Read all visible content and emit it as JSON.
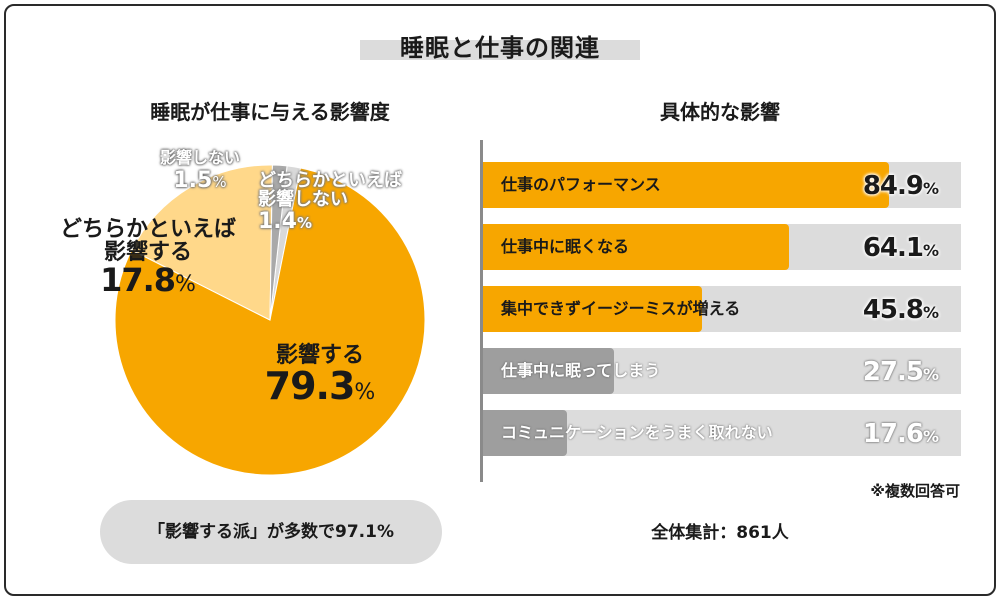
{
  "title": "睡眠と仕事の関連",
  "chart_data": [
    {
      "type": "pie",
      "title": "睡眠が仕事に与える影響度",
      "slices": [
        {
          "label": "影響する",
          "value": 79.3,
          "color": "#f7a600"
        },
        {
          "label": "どちらかといえば影響する",
          "value": 17.8,
          "color": "#ffd88a"
        },
        {
          "label": "影響しない",
          "value": 1.5,
          "color": "#a9a9a9"
        },
        {
          "label": "どちらかといえば影響しない",
          "value": 1.4,
          "color": "#d9d9d9"
        }
      ],
      "unit": "%"
    },
    {
      "type": "bar",
      "orientation": "horizontal",
      "title": "具体的な影響",
      "categories": [
        "仕事のパフォーマンス",
        "仕事中に眠くなる",
        "集中できずイージーミスが増える",
        "仕事中に眠ってしまう",
        "コミュニケーションをうまく取れない"
      ],
      "values": [
        84.9,
        64.1,
        45.8,
        27.5,
        17.6
      ],
      "xlim": [
        0,
        100
      ],
      "highlight_color": "#f7a600",
      "base_color": "#9e9e9e",
      "unit": "%"
    }
  ],
  "pie_labels": {
    "affects_line1": "影響する",
    "affects_pct": "79.3",
    "rather_affects_line1": "どちらかといえば",
    "rather_affects_line2": "影響する",
    "rather_affects_pct": "17.8",
    "no_affect_line1": "影響しない",
    "no_affect_pct": "1.5",
    "rather_no_line1": "どちらかといえば",
    "rather_no_line2": "影響しない",
    "rather_no_pct": "1.4",
    "unit": "%"
  },
  "summary_pill": "「影響する派」が多数で97.1%",
  "note": "※複数回答可",
  "total": "全体集計：861人"
}
